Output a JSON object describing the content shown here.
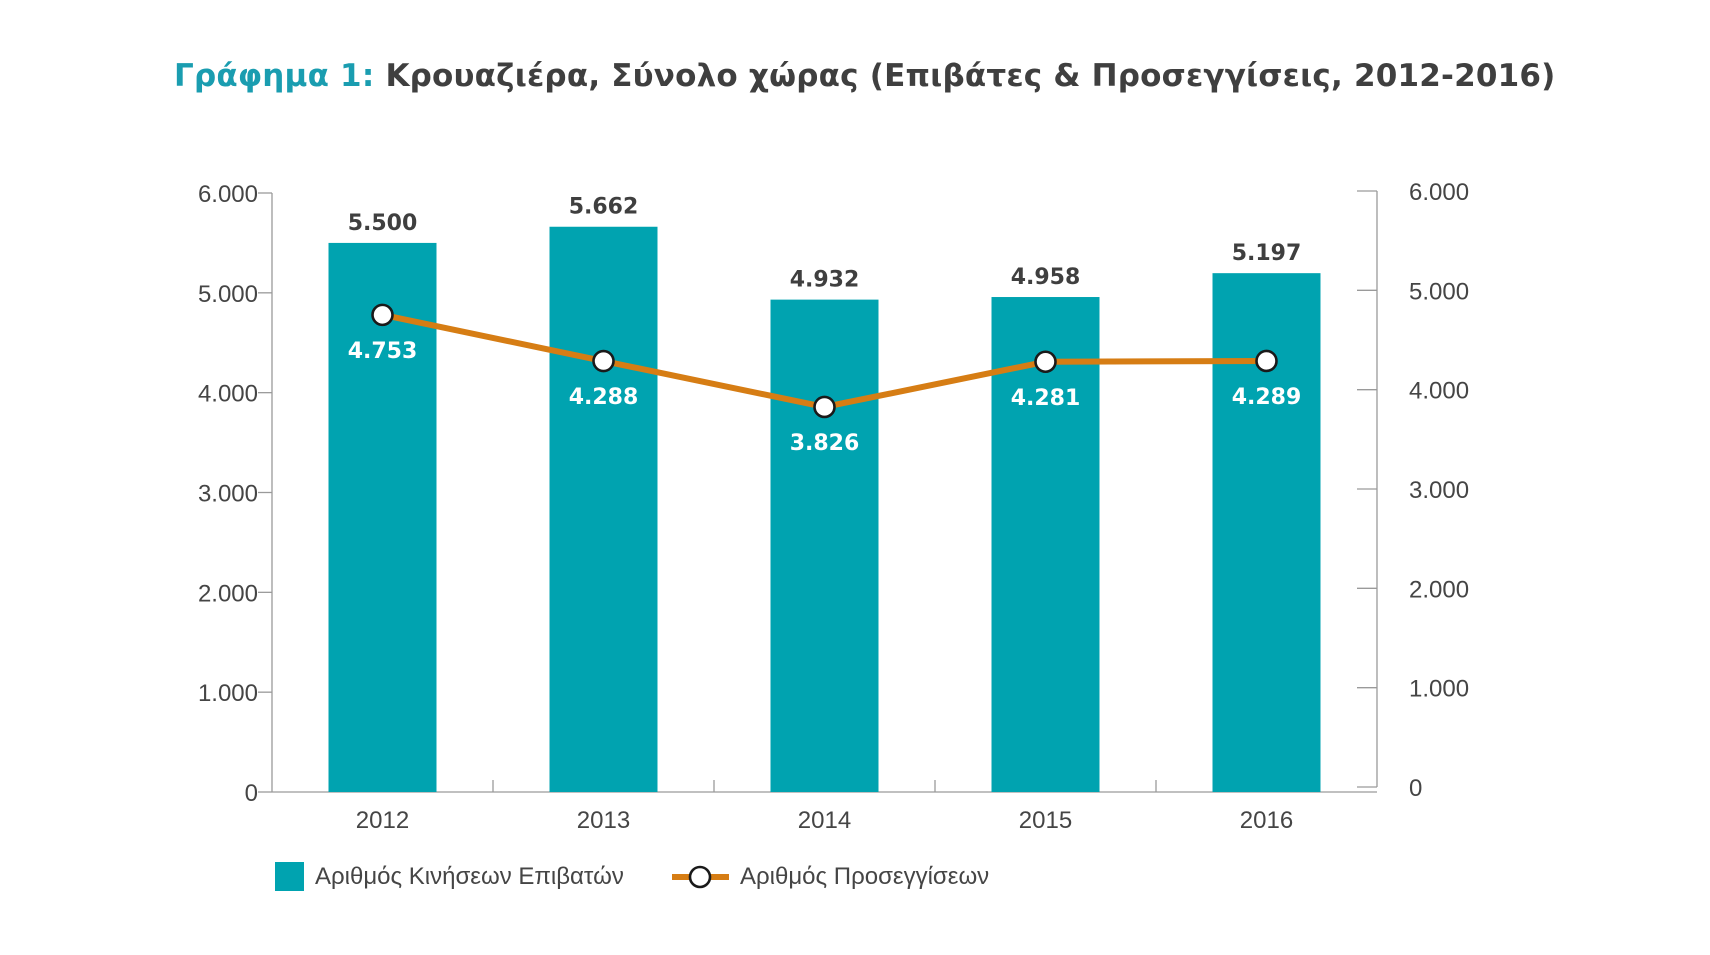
{
  "title": {
    "prefix": "Γράφημα 1:",
    "main": "Κρουαζιέρα, Σύνολο χώρας (Επιβάτες & Προσεγγίσεις, 2012-2016)"
  },
  "colors": {
    "bars": "#00a3b0",
    "line": "#d67d14",
    "axis": "#9a9a9a",
    "text": "#454545",
    "title_accent": "#1a9db0"
  },
  "chart_data": {
    "type": "bar",
    "categories": [
      "2012",
      "2013",
      "2014",
      "2015",
      "2016"
    ],
    "series": [
      {
        "name": "Αριθμός Κινήσεων Επιβατών",
        "type": "bar",
        "axis": "left",
        "values": [
          5500,
          5662,
          4932,
          4958,
          5197
        ],
        "labels": [
          "5.500",
          "5.662",
          "4.932",
          "4.958",
          "5.197"
        ]
      },
      {
        "name": "Αριθμός Προσεγγίσεων",
        "type": "line",
        "axis": "right",
        "values": [
          4753,
          4288,
          3826,
          4281,
          4289
        ],
        "labels": [
          "4.753",
          "4.288",
          "3.826",
          "4.281",
          "4.289"
        ]
      }
    ],
    "y_left": {
      "ylim": [
        0,
        6000
      ],
      "ticks": [
        0,
        1000,
        2000,
        3000,
        4000,
        5000,
        6000
      ],
      "tick_labels": [
        "0",
        "1.000",
        "2.000",
        "3.000",
        "4.000",
        "5.000",
        "6.000"
      ]
    },
    "y_right": {
      "ylim": [
        0,
        6000
      ],
      "ticks": [
        0,
        1000,
        2000,
        3000,
        4000,
        5000,
        6000
      ],
      "tick_labels": [
        "0",
        "1.000",
        "2.000",
        "3.000",
        "4.000",
        "5.000",
        "6.000"
      ]
    },
    "grid": false,
    "legend": "bottom-left"
  }
}
